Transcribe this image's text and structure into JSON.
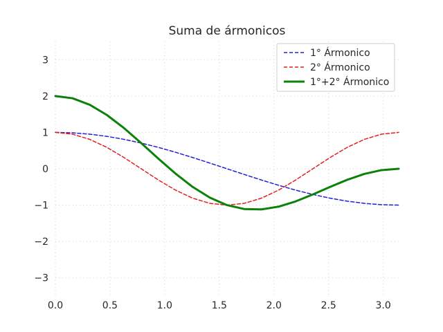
{
  "chart_data": {
    "type": "line",
    "title": "Suma de ármonicos",
    "xlabel": "",
    "ylabel": "",
    "xlim": [
      0,
      3.14159
    ],
    "ylim": [
      -3.5,
      3.5
    ],
    "x_ticks": [
      0.0,
      0.5,
      1.0,
      1.5,
      2.0,
      2.5,
      3.0
    ],
    "x_tick_labels": [
      "0.0",
      "0.5",
      "1.0",
      "1.5",
      "2.0",
      "2.5",
      "3.0"
    ],
    "y_ticks": [
      3,
      2,
      1,
      0,
      -1,
      -2,
      -3
    ],
    "y_tick_labels": [
      "3",
      "2",
      "1",
      "0",
      "−1",
      "−2",
      "−3"
    ],
    "grid": true,
    "legend_position": "top-right",
    "series": [
      {
        "name": "1° Ármonico",
        "color": "#1f1fd6",
        "style": "dashed",
        "x": [
          0,
          0.1571,
          0.3142,
          0.4712,
          0.6283,
          0.7854,
          0.9425,
          1.0996,
          1.2566,
          1.4137,
          1.5708,
          1.7279,
          1.885,
          2.042,
          2.1991,
          2.3562,
          2.5133,
          2.6704,
          2.8274,
          2.9845,
          3.1416
        ],
        "y": [
          1.0,
          0.988,
          0.951,
          0.891,
          0.809,
          0.707,
          0.588,
          0.454,
          0.309,
          0.156,
          0.0,
          -0.156,
          -0.309,
          -0.454,
          -0.588,
          -0.707,
          -0.809,
          -0.891,
          -0.951,
          -0.988,
          -1.0
        ]
      },
      {
        "name": "2° Ármonico",
        "color": "#e02020",
        "style": "dashed",
        "x": [
          0,
          0.1571,
          0.3142,
          0.4712,
          0.6283,
          0.7854,
          0.9425,
          1.0996,
          1.2566,
          1.4137,
          1.5708,
          1.7279,
          1.885,
          2.042,
          2.1991,
          2.3562,
          2.5133,
          2.6704,
          2.8274,
          2.9845,
          3.1416
        ],
        "y": [
          1.0,
          0.951,
          0.809,
          0.588,
          0.309,
          0.0,
          -0.309,
          -0.588,
          -0.809,
          -0.951,
          -1.0,
          -0.951,
          -0.809,
          -0.588,
          -0.309,
          0.0,
          0.309,
          0.588,
          0.809,
          0.951,
          1.0
        ]
      },
      {
        "name": "1°+2° Ármonico",
        "color": "#0a820a",
        "style": "solid",
        "x": [
          0,
          0.1571,
          0.3142,
          0.4712,
          0.6283,
          0.7854,
          0.9425,
          1.0996,
          1.2566,
          1.4137,
          1.5708,
          1.7279,
          1.885,
          2.042,
          2.1991,
          2.3562,
          2.5133,
          2.6704,
          2.8274,
          2.9845,
          3.1416
        ],
        "y": [
          2.0,
          1.939,
          1.76,
          1.479,
          1.118,
          0.707,
          0.279,
          -0.134,
          -0.5,
          -0.795,
          -1.0,
          -1.107,
          -1.118,
          -1.042,
          -0.897,
          -0.707,
          -0.5,
          -0.303,
          -0.142,
          -0.037,
          0.0
        ]
      }
    ]
  }
}
